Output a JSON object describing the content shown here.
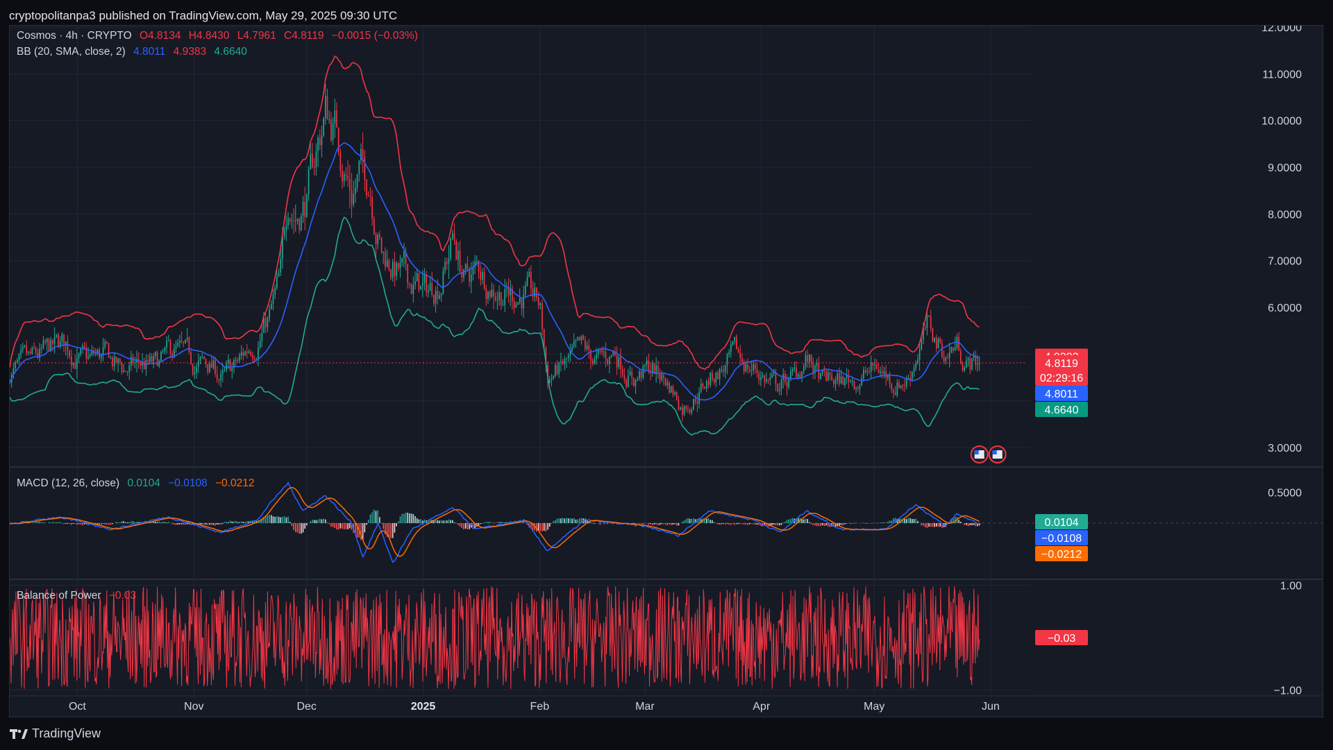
{
  "header": {
    "published": "cryptopolitanpa3 published on TradingView.com, May 29, 2025 09:30 UTC"
  },
  "legend": {
    "symbol": "Cosmos · 4h · CRYPTO",
    "open": "O4.8134",
    "high": "H4.8430",
    "low": "L4.7961",
    "close": "C4.8119",
    "change": "−0.0015 (−0.03%)",
    "bb_label": "BB (20, SMA, close, 2)",
    "bb_basis": "4.8011",
    "bb_upper": "4.9383",
    "bb_lower": "4.6640",
    "macd_label": "MACD (12, 26, close)",
    "macd_hist": "0.0104",
    "macd_line": "−0.0108",
    "macd_signal": "−0.0212",
    "bop_label": "Balance of Power",
    "bop_value": "−0.03"
  },
  "badges": {
    "upper": "4.9383",
    "price": "4.8119",
    "countdown": "02:29:16",
    "basis": "4.8011",
    "lower": "4.6640",
    "hist": "0.0104",
    "macd": "−0.0108",
    "signal": "−0.0212",
    "bop": "−0.03"
  },
  "colors": {
    "bg": "#161a25",
    "grid": "#232734",
    "up": "#22ab94",
    "down": "#f23645",
    "bb_upper": "#f23645",
    "bb_basis": "#2962ff",
    "bb_lower": "#22ab94",
    "macd": "#2962ff",
    "signal": "#ff6d00",
    "text": "#d1d4dc"
  },
  "chart_data": [
    {
      "type": "candlestick",
      "title": "Cosmos · 4h · CRYPTO",
      "interval": "4h",
      "ylim": [
        2.6,
        12.0
      ],
      "y_ticks": [
        "12.0000",
        "11.0000",
        "10.0000",
        "9.0000",
        "8.0000",
        "7.0000",
        "6.0000",
        "3.0000"
      ],
      "y_tick_values": [
        12,
        11,
        10,
        9,
        8,
        7,
        6,
        3
      ],
      "x_ticks": [
        "Oct",
        "Nov",
        "Dec",
        "2025",
        "Feb",
        "Mar",
        "Apr",
        "May",
        "Jun"
      ],
      "x_tick_dates": [
        "2024-10-01",
        "2024-11-01",
        "2024-12-01",
        "2025-01-01",
        "2025-02-01",
        "2025-03-01",
        "2025-04-01",
        "2025-05-01",
        "2025-06-01"
      ],
      "x_range": [
        "2024-09-13",
        "2025-06-06"
      ],
      "last_price": 4.8119,
      "price_path": [
        [
          "2024-09-13",
          4.6
        ],
        [
          "2024-09-18",
          4.75
        ],
        [
          "2024-09-24",
          5.05
        ],
        [
          "2024-09-28",
          5.2
        ],
        [
          "2024-10-03",
          4.8
        ],
        [
          "2024-10-08",
          4.95
        ],
        [
          "2024-10-13",
          4.65
        ],
        [
          "2024-10-18",
          4.75
        ],
        [
          "2024-10-22",
          4.7
        ],
        [
          "2024-10-27",
          5.05
        ],
        [
          "2024-11-01",
          4.75
        ],
        [
          "2024-11-05",
          4.75
        ],
        [
          "2024-11-09",
          4.45
        ],
        [
          "2024-11-13",
          4.8
        ],
        [
          "2024-11-17",
          5.3
        ],
        [
          "2024-11-21",
          5.75
        ],
        [
          "2024-11-24",
          6.5
        ],
        [
          "2024-11-26",
          8.4
        ],
        [
          "2024-11-28",
          8.1
        ],
        [
          "2024-12-01",
          8.3
        ],
        [
          "2024-12-04",
          9.5
        ],
        [
          "2024-12-06",
          10.2
        ],
        [
          "2024-12-09",
          9.8
        ],
        [
          "2024-12-11",
          9.1
        ],
        [
          "2024-12-13",
          8.5
        ],
        [
          "2024-12-15",
          8.9
        ],
        [
          "2024-12-18",
          8.7
        ],
        [
          "2024-12-21",
          7.2
        ],
        [
          "2024-12-25",
          6.8
        ],
        [
          "2024-12-29",
          6.5
        ],
        [
          "2025-01-02",
          6.3
        ],
        [
          "2025-01-06",
          6.7
        ],
        [
          "2025-01-09",
          7.5
        ],
        [
          "2025-01-12",
          6.6
        ],
        [
          "2025-01-16",
          6.8
        ],
        [
          "2025-01-20",
          6.5
        ],
        [
          "2025-01-24",
          6.3
        ],
        [
          "2025-01-28",
          6.3
        ],
        [
          "2025-02-01",
          6.0
        ],
        [
          "2025-02-03",
          4.5
        ],
        [
          "2025-02-07",
          4.7
        ],
        [
          "2025-02-12",
          5.0
        ],
        [
          "2025-02-17",
          4.8
        ],
        [
          "2025-02-21",
          5.05
        ],
        [
          "2025-02-26",
          4.5
        ],
        [
          "2025-03-03",
          4.7
        ],
        [
          "2025-03-08",
          4.3
        ],
        [
          "2025-03-11",
          3.9
        ],
        [
          "2025-03-15",
          4.2
        ],
        [
          "2025-03-20",
          4.6
        ],
        [
          "2025-03-25",
          4.9
        ],
        [
          "2025-03-30",
          4.7
        ],
        [
          "2025-04-05",
          4.3
        ],
        [
          "2025-04-10",
          4.5
        ],
        [
          "2025-04-13",
          4.9
        ],
        [
          "2025-04-17",
          4.4
        ],
        [
          "2025-04-22",
          4.4
        ],
        [
          "2025-04-27",
          4.5
        ],
        [
          "2025-05-02",
          4.7
        ],
        [
          "2025-05-06",
          4.4
        ],
        [
          "2025-05-10",
          4.5
        ],
        [
          "2025-05-13",
          5.2
        ],
        [
          "2025-05-15",
          5.5
        ],
        [
          "2025-05-20",
          5.0
        ],
        [
          "2025-05-23",
          5.2
        ],
        [
          "2025-05-26",
          4.8
        ],
        [
          "2025-05-29",
          4.81
        ]
      ]
    },
    {
      "type": "line",
      "title": "MACD (12, 26, close)",
      "y_ticks": [
        "0.5000"
      ],
      "y_tick_values": [
        0.5
      ],
      "ylim": [
        -0.9,
        0.9
      ],
      "macd_path": [
        [
          "2024-09-15",
          0.0
        ],
        [
          "2024-09-26",
          0.1
        ],
        [
          "2024-10-10",
          -0.1
        ],
        [
          "2024-10-25",
          0.1
        ],
        [
          "2024-11-08",
          -0.15
        ],
        [
          "2024-11-18",
          0.05
        ],
        [
          "2024-11-21",
          0.3
        ],
        [
          "2024-11-26",
          0.65
        ],
        [
          "2024-11-30",
          0.2
        ],
        [
          "2024-12-06",
          0.45
        ],
        [
          "2024-12-13",
          0.0
        ],
        [
          "2024-12-16",
          -0.55
        ],
        [
          "2024-12-20",
          0.0
        ],
        [
          "2024-12-24",
          -0.65
        ],
        [
          "2024-12-29",
          -0.1
        ],
        [
          "2025-01-09",
          0.25
        ],
        [
          "2025-01-15",
          -0.1
        ],
        [
          "2025-01-28",
          0.05
        ],
        [
          "2025-02-03",
          -0.45
        ],
        [
          "2025-02-13",
          0.05
        ],
        [
          "2025-03-01",
          -0.05
        ],
        [
          "2025-03-10",
          -0.2
        ],
        [
          "2025-03-18",
          0.2
        ],
        [
          "2025-03-30",
          0.05
        ],
        [
          "2025-04-06",
          -0.15
        ],
        [
          "2025-04-13",
          0.2
        ],
        [
          "2025-04-22",
          -0.1
        ],
        [
          "2025-05-04",
          -0.1
        ],
        [
          "2025-05-12",
          0.3
        ],
        [
          "2025-05-20",
          -0.05
        ],
        [
          "2025-05-23",
          0.15
        ],
        [
          "2025-05-29",
          -0.01
        ]
      ]
    },
    {
      "type": "bar",
      "title": "Balance of Power",
      "y_ticks": [
        "1.00",
        "−1.00"
      ],
      "y_tick_values": [
        1,
        -1
      ],
      "ylim": [
        -1.1,
        1.1
      ],
      "last_value": -0.03
    }
  ]
}
